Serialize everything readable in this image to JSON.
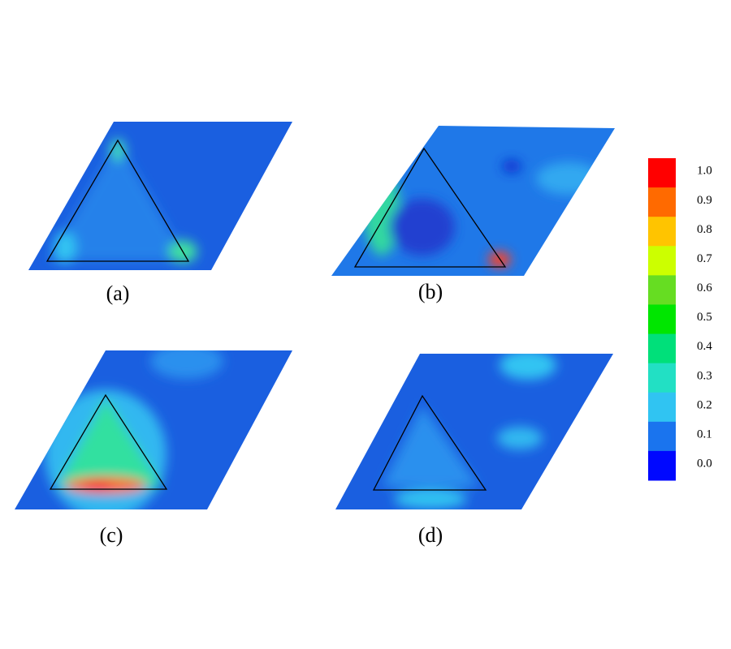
{
  "panels": [
    {
      "label": "(a)"
    },
    {
      "label": "(b)"
    },
    {
      "label": "(c)"
    },
    {
      "label": "(d)"
    }
  ],
  "colorbar": {
    "labels": [
      "1.0",
      "0.9",
      "0.8",
      "0.7",
      "0.6",
      "0.5",
      "0.4",
      "0.3",
      "0.2",
      "0.1",
      "0.0"
    ],
    "colors": [
      "#ff0000",
      "#ff6a00",
      "#ffc400",
      "#ccff00",
      "#66dd22",
      "#00e600",
      "#00e07a",
      "#22e0c4",
      "#30c4f2",
      "#1a74ee",
      "#0008ff"
    ]
  }
}
